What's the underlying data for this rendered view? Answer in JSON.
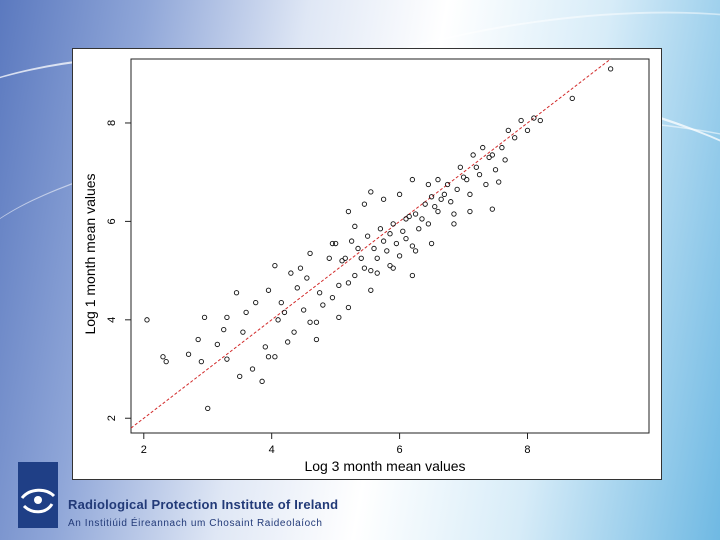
{
  "slide": {
    "org_name": "Radiological Protection Institute of Ireland",
    "org_name_irish": "An Institiúid Éireannach um Chosaint Raideolaíoch",
    "background_colors": [
      "#5b79bf",
      "#ffffff",
      "#6fb9e3"
    ],
    "logo_color": "#1f3f86"
  },
  "chart_data": {
    "type": "scatter",
    "xlabel": "Log 3 month mean values",
    "ylabel": "Log 1 month mean values",
    "x_ticks": [
      2,
      4,
      6,
      8
    ],
    "y_ticks": [
      2,
      4,
      6,
      8
    ],
    "xlim": [
      1.8,
      9.9
    ],
    "ylim": [
      1.7,
      9.3
    ],
    "grid": false,
    "marker": "open-circle",
    "reference_line": {
      "type": "y=x",
      "color": "#d22b2b",
      "style": "dashed"
    },
    "points": [
      [
        2.05,
        4.0
      ],
      [
        2.3,
        3.25
      ],
      [
        2.35,
        3.15
      ],
      [
        2.7,
        3.3
      ],
      [
        2.9,
        3.15
      ],
      [
        3.0,
        2.2
      ],
      [
        2.95,
        4.05
      ],
      [
        3.15,
        3.5
      ],
      [
        3.3,
        3.2
      ],
      [
        3.5,
        2.85
      ],
      [
        3.55,
        3.75
      ],
      [
        3.7,
        3.0
      ],
      [
        3.9,
        3.45
      ],
      [
        3.95,
        3.25
      ],
      [
        4.1,
        4.0
      ],
      [
        4.2,
        4.15
      ],
      [
        4.35,
        3.75
      ],
      [
        4.5,
        4.2
      ],
      [
        4.6,
        3.95
      ],
      [
        4.7,
        3.6
      ],
      [
        4.8,
        4.3
      ],
      [
        4.95,
        4.45
      ],
      [
        5.05,
        4.05
      ],
      [
        5.1,
        5.2
      ],
      [
        5.2,
        4.75
      ],
      [
        5.3,
        4.9
      ],
      [
        5.45,
        5.05
      ],
      [
        5.55,
        4.6
      ],
      [
        5.65,
        4.95
      ],
      [
        5.8,
        5.4
      ],
      [
        5.9,
        5.05
      ],
      [
        6.0,
        5.3
      ],
      [
        6.1,
        6.05
      ],
      [
        6.2,
        5.5
      ],
      [
        6.3,
        5.85
      ],
      [
        6.45,
        5.95
      ],
      [
        6.55,
        6.3
      ],
      [
        6.7,
        6.55
      ],
      [
        6.85,
        6.15
      ],
      [
        7.0,
        6.9
      ],
      [
        7.2,
        7.1
      ],
      [
        7.4,
        7.3
      ],
      [
        7.6,
        7.5
      ],
      [
        7.8,
        7.7
      ],
      [
        8.0,
        7.85
      ],
      [
        8.2,
        8.05
      ],
      [
        8.7,
        8.5
      ],
      [
        9.3,
        9.1
      ],
      [
        3.45,
        4.55
      ],
      [
        3.95,
        4.6
      ],
      [
        4.05,
        5.1
      ],
      [
        4.4,
        4.65
      ],
      [
        4.45,
        5.05
      ],
      [
        4.55,
        4.85
      ],
      [
        4.75,
        4.55
      ],
      [
        4.9,
        5.25
      ],
      [
        5.0,
        5.55
      ],
      [
        5.15,
        5.25
      ],
      [
        5.25,
        5.6
      ],
      [
        5.35,
        5.45
      ],
      [
        5.4,
        5.25
      ],
      [
        5.5,
        5.7
      ],
      [
        5.6,
        5.45
      ],
      [
        5.65,
        5.25
      ],
      [
        5.7,
        5.85
      ],
      [
        5.75,
        5.6
      ],
      [
        5.85,
        5.75
      ],
      [
        5.9,
        5.95
      ],
      [
        5.95,
        5.55
      ],
      [
        6.05,
        5.8
      ],
      [
        6.1,
        5.65
      ],
      [
        6.15,
        6.1
      ],
      [
        6.25,
        6.15
      ],
      [
        6.35,
        6.05
      ],
      [
        6.4,
        6.35
      ],
      [
        6.5,
        6.5
      ],
      [
        6.6,
        6.2
      ],
      [
        6.65,
        6.45
      ],
      [
        6.75,
        6.75
      ],
      [
        6.8,
        6.4
      ],
      [
        6.9,
        6.65
      ],
      [
        7.05,
        6.85
      ],
      [
        7.1,
        6.55
      ],
      [
        7.25,
        6.95
      ],
      [
        7.35,
        6.75
      ],
      [
        7.5,
        7.05
      ],
      [
        7.55,
        6.8
      ],
      [
        7.65,
        7.25
      ],
      [
        7.9,
        8.05
      ],
      [
        8.1,
        8.1
      ],
      [
        5.2,
        6.2
      ],
      [
        5.45,
        6.35
      ],
      [
        5.55,
        6.6
      ],
      [
        5.75,
        6.45
      ],
      [
        6.0,
        6.55
      ],
      [
        6.2,
        6.85
      ],
      [
        6.45,
        6.75
      ],
      [
        6.6,
        6.85
      ],
      [
        6.95,
        7.1
      ],
      [
        7.15,
        7.35
      ],
      [
        7.3,
        7.5
      ],
      [
        7.45,
        7.35
      ],
      [
        7.7,
        7.85
      ],
      [
        6.25,
        5.4
      ],
      [
        6.5,
        5.55
      ],
      [
        6.85,
        5.95
      ],
      [
        7.1,
        6.2
      ],
      [
        7.45,
        6.25
      ],
      [
        5.55,
        5.0
      ],
      [
        5.85,
        5.1
      ],
      [
        6.2,
        4.9
      ],
      [
        5.2,
        4.25
      ],
      [
        4.7,
        3.95
      ],
      [
        4.25,
        3.55
      ],
      [
        3.85,
        2.75
      ],
      [
        4.05,
        3.25
      ],
      [
        3.25,
        3.8
      ],
      [
        2.85,
        3.6
      ],
      [
        4.6,
        5.35
      ],
      [
        4.95,
        5.55
      ],
      [
        5.3,
        5.9
      ],
      [
        5.05,
        4.7
      ],
      [
        4.15,
        4.35
      ],
      [
        3.75,
        4.35
      ],
      [
        3.6,
        4.15
      ],
      [
        3.3,
        4.05
      ],
      [
        4.3,
        4.95
      ]
    ]
  }
}
